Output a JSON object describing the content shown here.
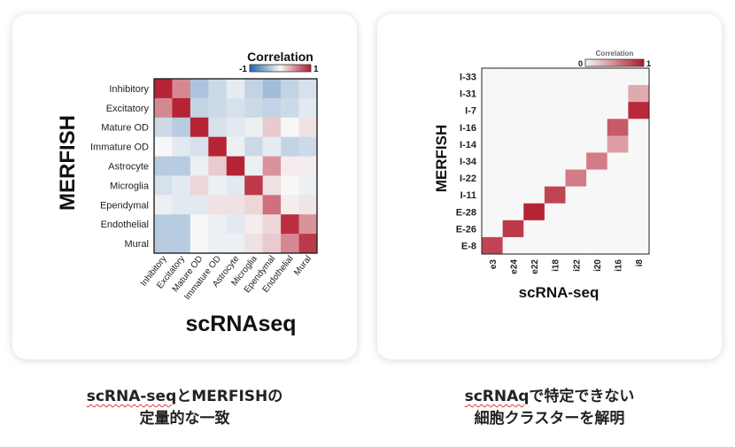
{
  "captions": {
    "left": {
      "line1_a": "scRNA-seq",
      "line1_b": "とMERFISHの",
      "line2": "定量的な一致"
    },
    "right": {
      "line1_a": "scRNAq",
      "line1_b": "で特定できない",
      "line2": "細胞クラスターを解明"
    }
  },
  "colors": {
    "neg": "#2166ac",
    "mid": "#f7f7f7",
    "pos": "#b2182b"
  },
  "chart_data": [
    {
      "type": "heatmap",
      "xlabel": "scRNAseq",
      "ylabel": "MERFISH",
      "legend": {
        "title": "Correlation",
        "min_label": "-1",
        "max_label": "1",
        "vmin": -1,
        "vmax": 1,
        "placement": "top-right"
      },
      "rows": [
        "Inhibitory",
        "Excitatory",
        "Mature OD",
        "Immature OD",
        "Astrocyte",
        "Microglia",
        "Ependymal",
        "Endothelial",
        "Mural"
      ],
      "cols": [
        "Inhibitory",
        "Excitatory",
        "Mature OD",
        "Immature OD",
        "Astrocyte",
        "Microglia",
        "Ependymal",
        "Endothelial",
        "Mural"
      ],
      "values": [
        [
          0.95,
          0.5,
          -0.35,
          -0.2,
          -0.08,
          -0.25,
          -0.4,
          -0.25,
          -0.15
        ],
        [
          0.5,
          0.95,
          -0.25,
          -0.2,
          -0.15,
          -0.2,
          -0.25,
          -0.2,
          -0.1
        ],
        [
          -0.2,
          -0.3,
          0.95,
          -0.15,
          -0.1,
          -0.05,
          0.2,
          0.0,
          0.1
        ],
        [
          0.0,
          -0.1,
          -0.15,
          0.95,
          -0.05,
          -0.2,
          -0.08,
          -0.25,
          -0.2
        ],
        [
          -0.3,
          -0.3,
          -0.05,
          0.2,
          0.95,
          -0.05,
          0.45,
          0.05,
          0.05
        ],
        [
          -0.15,
          -0.1,
          0.15,
          -0.05,
          -0.1,
          0.85,
          0.1,
          0.0,
          -0.05
        ],
        [
          -0.05,
          -0.1,
          -0.1,
          0.1,
          0.1,
          0.15,
          0.6,
          0.05,
          0.08
        ],
        [
          -0.3,
          -0.3,
          0.0,
          -0.05,
          -0.1,
          0.05,
          0.15,
          0.9,
          0.45
        ],
        [
          -0.3,
          -0.3,
          0.0,
          -0.05,
          -0.05,
          0.1,
          0.2,
          0.5,
          0.85
        ]
      ]
    },
    {
      "type": "heatmap",
      "xlabel": "scRNA-seq",
      "ylabel": "MERFISH",
      "legend": {
        "title": "Correlation",
        "min_label": "0",
        "max_label": "1",
        "vmin": 0,
        "vmax": 1,
        "placement": "top-right"
      },
      "rows": [
        "I-33",
        "I-31",
        "I-7",
        "I-16",
        "I-14",
        "I-34",
        "I-22",
        "I-11",
        "E-28",
        "E-26",
        "E-8"
      ],
      "cols": [
        "e3",
        "e24",
        "e22",
        "i18",
        "i22",
        "i20",
        "i16",
        "i8"
      ],
      "values": [
        [
          0,
          0,
          0,
          0,
          0,
          0,
          0,
          0
        ],
        [
          0,
          0,
          0,
          0,
          0,
          0,
          0,
          0.35
        ],
        [
          0,
          0,
          0,
          0,
          0,
          0,
          0,
          0.92
        ],
        [
          0,
          0,
          0,
          0,
          0,
          0,
          0.7,
          0
        ],
        [
          0,
          0,
          0,
          0,
          0,
          0,
          0.4,
          0
        ],
        [
          0,
          0,
          0,
          0,
          0,
          0.55,
          0,
          0
        ],
        [
          0,
          0,
          0,
          0,
          0.55,
          0,
          0,
          0
        ],
        [
          0,
          0,
          0,
          0.8,
          0,
          0,
          0,
          0
        ],
        [
          0,
          0,
          0.95,
          0,
          0,
          0,
          0,
          0
        ],
        [
          0,
          0.85,
          0,
          0,
          0,
          0,
          0,
          0
        ],
        [
          0.8,
          0,
          0,
          0,
          0,
          0,
          0,
          0
        ]
      ]
    }
  ]
}
